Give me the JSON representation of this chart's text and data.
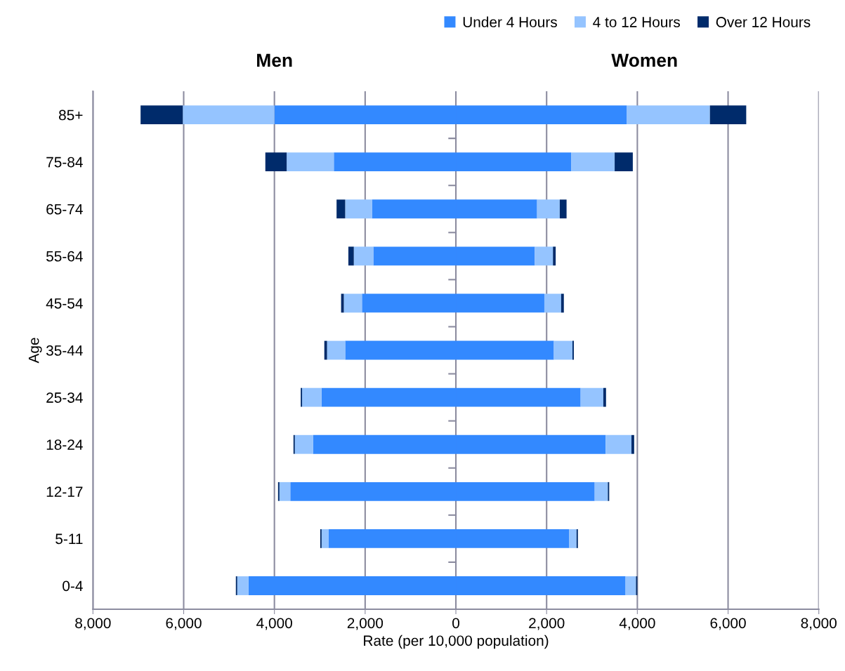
{
  "chart_data": {
    "type": "bar",
    "orientation": "horizontal",
    "stacked": true,
    "categories": [
      "85+",
      "75-84",
      "65-74",
      "55-64",
      "45-54",
      "35-44",
      "25-34",
      "18-24",
      "12-17",
      "5-11",
      "0-4"
    ],
    "series": [
      {
        "color": "#3389ff",
        "values": [
          -4000,
          -2690,
          -1850,
          -1820,
          -2070,
          -2440,
          -2960,
          -3150,
          -3650,
          -2810,
          -4570
        ]
      },
      {
        "color": "#95c4ff",
        "values": [
          -2020,
          -1040,
          -590,
          -430,
          -400,
          -400,
          -430,
          -400,
          -240,
          -150,
          -250
        ]
      },
      {
        "color": "#002b6b",
        "values": [
          -930,
          -470,
          -190,
          -120,
          -60,
          -60,
          -30,
          -30,
          -30,
          -30,
          -30
        ]
      },
      {
        "name": "Under 4 Hours",
        "color": "#3389ff",
        "values": [
          3770,
          2540,
          1790,
          1740,
          1950,
          2160,
          2750,
          3300,
          3060,
          2500,
          3740
        ]
      },
      {
        "name": "4 to 12 Hours",
        "color": "#95c4ff",
        "values": [
          1830,
          960,
          500,
          400,
          370,
          410,
          500,
          570,
          290,
          160,
          230
        ]
      },
      {
        "name": "Over 12 Hours",
        "color": "#002b6b",
        "values": [
          800,
          400,
          150,
          60,
          60,
          30,
          60,
          60,
          30,
          30,
          30
        ]
      }
    ],
    "xlabel": "Rate (per 10,000 population)",
    "ylabel": "Age",
    "xlim": [
      -8000,
      8000
    ],
    "xticks": [
      {
        "value": -8000,
        "label": "8,000"
      },
      {
        "value": -6000,
        "label": "6,000"
      },
      {
        "value": -4000,
        "label": "4,000"
      },
      {
        "value": -2000,
        "label": "2,000"
      },
      0,
      {
        "value": 2000,
        "label": "2,000"
      },
      {
        "value": 4000,
        "label": "4,000"
      },
      {
        "value": 6000,
        "label": "6,000"
      },
      {
        "value": 8000,
        "label": "8,000"
      }
    ],
    "annotations": [
      "Men",
      "Women"
    ],
    "grid": "x",
    "legend": "top right"
  }
}
